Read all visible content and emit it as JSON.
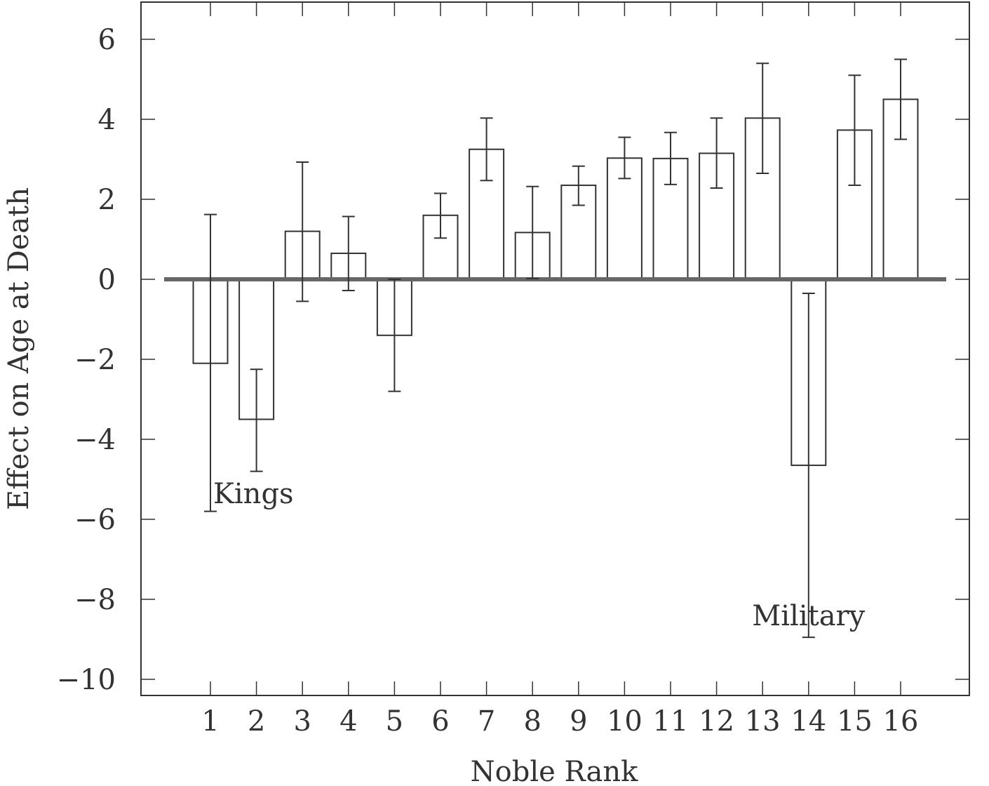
{
  "chart_data": {
    "type": "bar",
    "xlabel": "Noble Rank",
    "ylabel": "Effect on Age at Death",
    "categories": [
      "1",
      "2",
      "3",
      "4",
      "5",
      "6",
      "7",
      "8",
      "9",
      "10",
      "11",
      "12",
      "13",
      "14",
      "15",
      "16"
    ],
    "values": [
      -2.1,
      -3.5,
      1.2,
      0.65,
      -1.4,
      1.6,
      3.25,
      1.17,
      2.35,
      3.03,
      3.02,
      3.15,
      4.03,
      -4.65,
      3.73,
      4.5
    ],
    "error_low": [
      -5.8,
      -4.8,
      -0.55,
      -0.28,
      -2.8,
      1.03,
      2.47,
      0.02,
      1.85,
      2.52,
      2.37,
      2.28,
      2.65,
      -8.95,
      2.35,
      3.5
    ],
    "error_high": [
      1.62,
      -2.25,
      2.93,
      1.57,
      0.0,
      2.15,
      4.03,
      2.32,
      2.83,
      3.55,
      3.67,
      4.03,
      5.4,
      -0.35,
      5.1,
      5.5
    ],
    "ylim": [
      -10.4,
      6.95
    ],
    "yticks": [
      -10,
      -8,
      -6,
      -4,
      -2,
      0,
      2,
      4,
      6
    ],
    "ytick_labels": [
      "−10",
      "−8",
      "−6",
      "−4",
      "−2",
      "0",
      "2",
      "4",
      "6"
    ],
    "zero_line": true,
    "grid": false,
    "annotations": [
      {
        "text": "Kings",
        "category": "1",
        "y": -5.35
      },
      {
        "text": "Military",
        "category": "14",
        "y": -8.4
      }
    ],
    "colors": {
      "bar_fill": "#ffffff",
      "stroke": "#333333",
      "zero_line": "#666666"
    }
  }
}
